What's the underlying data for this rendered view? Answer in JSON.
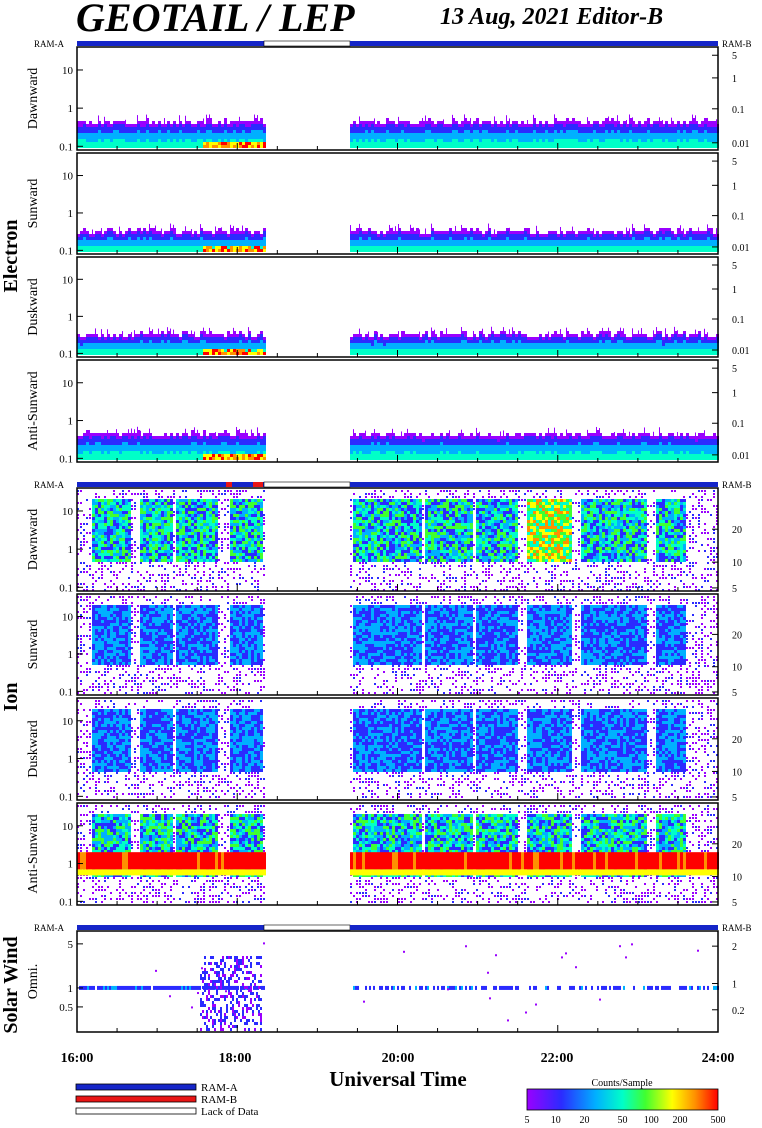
{
  "header": {
    "instrument": "GEOTAIL / LEP",
    "date_editor": "13 Aug, 2021   Editor-B"
  },
  "status_bar_labels": {
    "left": "RAM-A",
    "right": "RAM-B"
  },
  "groups": [
    {
      "label": "Electron",
      "panels": [
        "Dawnward",
        "Sunward",
        "Duskward",
        "Anti-Sunward"
      ]
    },
    {
      "label": "Ion",
      "panels": [
        "Dawnward",
        "Sunward",
        "Duskward",
        "Anti-Sunward"
      ]
    },
    {
      "label": "Solar Wind",
      "panels": [
        "Omni."
      ]
    }
  ],
  "x_axis": {
    "title": "Universal Time",
    "ticks": [
      "16:00",
      "18:00",
      "20:00",
      "22:00",
      "24:00"
    ]
  },
  "legend": [
    {
      "label": "RAM-A",
      "color": "#1525c8"
    },
    {
      "label": "RAM-B",
      "color": "#e81515"
    },
    {
      "label": "Lack of Data",
      "color": "#ffffff"
    }
  ],
  "colorbar": {
    "title": "Counts/Sample",
    "ticks": [
      "5",
      "10",
      "20",
      "50",
      "100",
      "200",
      "500"
    ]
  },
  "chart_data": [
    {
      "type": "heatmap",
      "title": "Electron Dawnward",
      "x_range": [
        "16:00",
        "24:00"
      ],
      "data_gap": [
        "18:24",
        "19:30"
      ],
      "y_ticks_left": [
        "10",
        "1",
        "0.1"
      ],
      "y_ticks_right": [
        "5",
        "1",
        "0.1",
        "0.01"
      ],
      "emission_top_left": 0.4,
      "emission_top_right": 0.3
    },
    {
      "type": "heatmap",
      "title": "Electron Sunward",
      "x_range": [
        "16:00",
        "24:00"
      ],
      "data_gap": [
        "18:24",
        "19:30"
      ],
      "y_ticks_left": [
        "10",
        "1",
        "0.1"
      ],
      "y_ticks_right": [
        "5",
        "1",
        "0.1",
        "0.01"
      ],
      "emission_top_left": 0.3,
      "emission_top_right": 0.2
    },
    {
      "type": "heatmap",
      "title": "Electron Duskward",
      "x_range": [
        "16:00",
        "24:00"
      ],
      "data_gap": [
        "18:24",
        "19:30"
      ],
      "y_ticks_left": [
        "10",
        "1",
        "0.1"
      ],
      "y_ticks_right": [
        "5",
        "1",
        "0.1",
        "0.01"
      ],
      "emission_top_left": 0.3,
      "emission_top_right": 0.3
    },
    {
      "type": "heatmap",
      "title": "Electron Anti-Sunward",
      "x_range": [
        "16:00",
        "24:00"
      ],
      "data_gap": [
        "18:24",
        "19:30"
      ],
      "y_ticks_left": [
        "10",
        "1",
        "0.1"
      ],
      "y_ticks_right": [
        "5",
        "1",
        "0.1",
        "0.01"
      ],
      "emission_top_left": 0.4,
      "emission_top_right": 0.4
    },
    {
      "type": "heatmap",
      "title": "Ion Dawnward",
      "x_range": [
        "16:00",
        "24:00"
      ],
      "data_gap": [
        "18:24",
        "19:30"
      ],
      "y_ticks_left": [
        "10",
        "1",
        "0.1"
      ],
      "y_ticks_right": [
        "20",
        "10",
        "5"
      ]
    },
    {
      "type": "heatmap",
      "title": "Ion Sunward",
      "x_range": [
        "16:00",
        "24:00"
      ],
      "data_gap": [
        "18:24",
        "19:30"
      ],
      "y_ticks_left": [
        "10",
        "1",
        "0.1"
      ],
      "y_ticks_right": [
        "20",
        "10",
        "5"
      ]
    },
    {
      "type": "heatmap",
      "title": "Ion Duskward",
      "x_range": [
        "16:00",
        "24:00"
      ],
      "data_gap": [
        "18:24",
        "19:30"
      ],
      "y_ticks_left": [
        "10",
        "1",
        "0.1"
      ],
      "y_ticks_right": [
        "20",
        "10",
        "5"
      ]
    },
    {
      "type": "heatmap",
      "title": "Ion Anti-Sunward",
      "x_range": [
        "16:00",
        "24:00"
      ],
      "data_gap": [
        "18:24",
        "19:30"
      ],
      "y_ticks_left": [
        "10",
        "1",
        "0.1"
      ],
      "y_ticks_right": [
        "20",
        "10",
        "5"
      ],
      "saturated_band": [
        0.7,
        2
      ]
    },
    {
      "type": "heatmap",
      "title": "Solar Wind Omni.",
      "x_range": [
        "16:00",
        "24:00"
      ],
      "data_gap": [
        "18:24",
        "19:30"
      ],
      "y_ticks_left": [
        "5",
        "1",
        "0.5"
      ],
      "y_ticks_right": [
        "2",
        "1",
        "0.2"
      ],
      "dominant_energy": 1
    }
  ],
  "colors": {
    "ram_a": "#1525c8",
    "ram_b": "#e81515",
    "axis": "#000000",
    "colormap": [
      "#9a00ff",
      "#2b2bff",
      "#00b0ff",
      "#00ffc8",
      "#40ff30",
      "#ffff00",
      "#ff9000",
      "#ff0000"
    ]
  }
}
